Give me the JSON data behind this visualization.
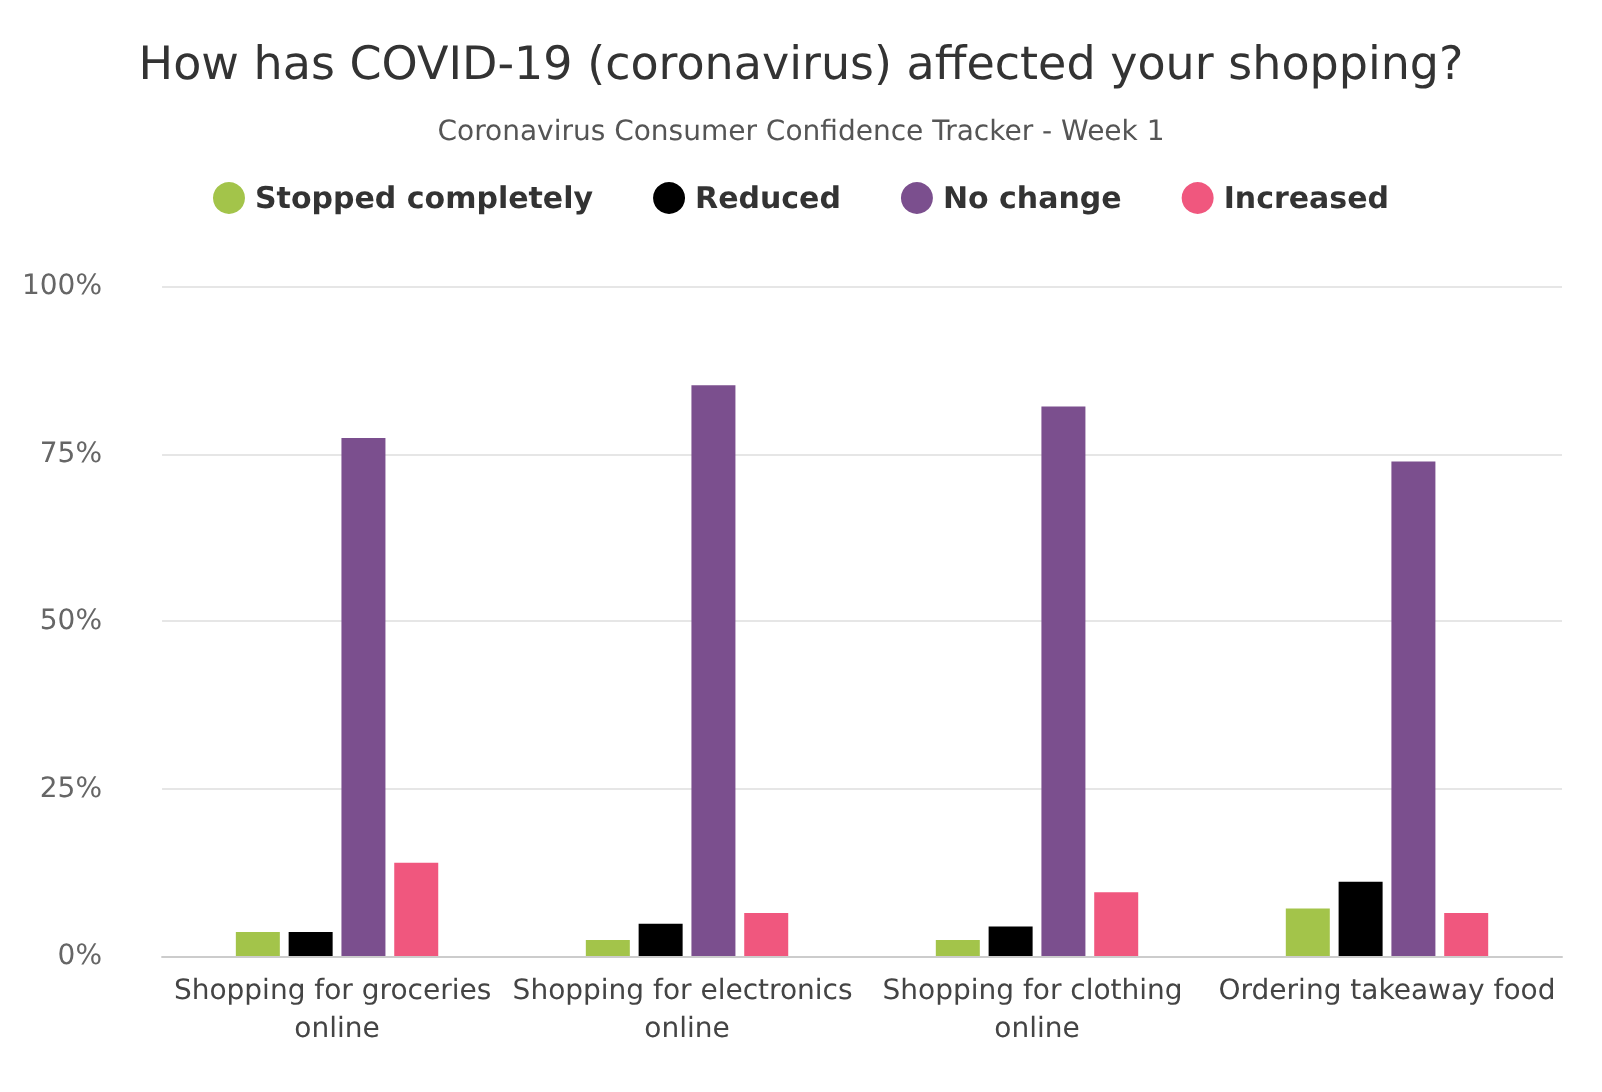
{
  "chart_data": {
    "type": "bar",
    "title": "How has COVID-19 (coronavirus) affected your shopping?",
    "subtitle": "Coronavirus Consumer Confidence Tracker - Week 1",
    "categories": [
      "Shopping for groceries online",
      "Shopping for electronics online",
      "Shopping for clothing online",
      "Ordering takeaway food"
    ],
    "series": [
      {
        "name": "Stopped completely",
        "color": "#a3c44a",
        "values": [
          3.6,
          2.4,
          2.4,
          7.1
        ]
      },
      {
        "name": "Reduced",
        "color": "#000000",
        "values": [
          3.6,
          4.8,
          4.4,
          11.1
        ]
      },
      {
        "name": "No change",
        "color": "#7b4f8e",
        "values": [
          77.3,
          85.2,
          82.0,
          73.8
        ]
      },
      {
        "name": "Increased",
        "color": "#f0577e",
        "values": [
          13.9,
          6.4,
          9.5,
          6.4
        ]
      }
    ],
    "ylim": [
      0,
      100
    ],
    "yticks": [
      {
        "value": 0,
        "label": "0%"
      },
      {
        "value": 25,
        "label": "25%"
      },
      {
        "value": 50,
        "label": "50%"
      },
      {
        "value": 75,
        "label": "75%"
      },
      {
        "value": 100,
        "label": "100%"
      }
    ],
    "grid": "y",
    "legend": "top"
  }
}
